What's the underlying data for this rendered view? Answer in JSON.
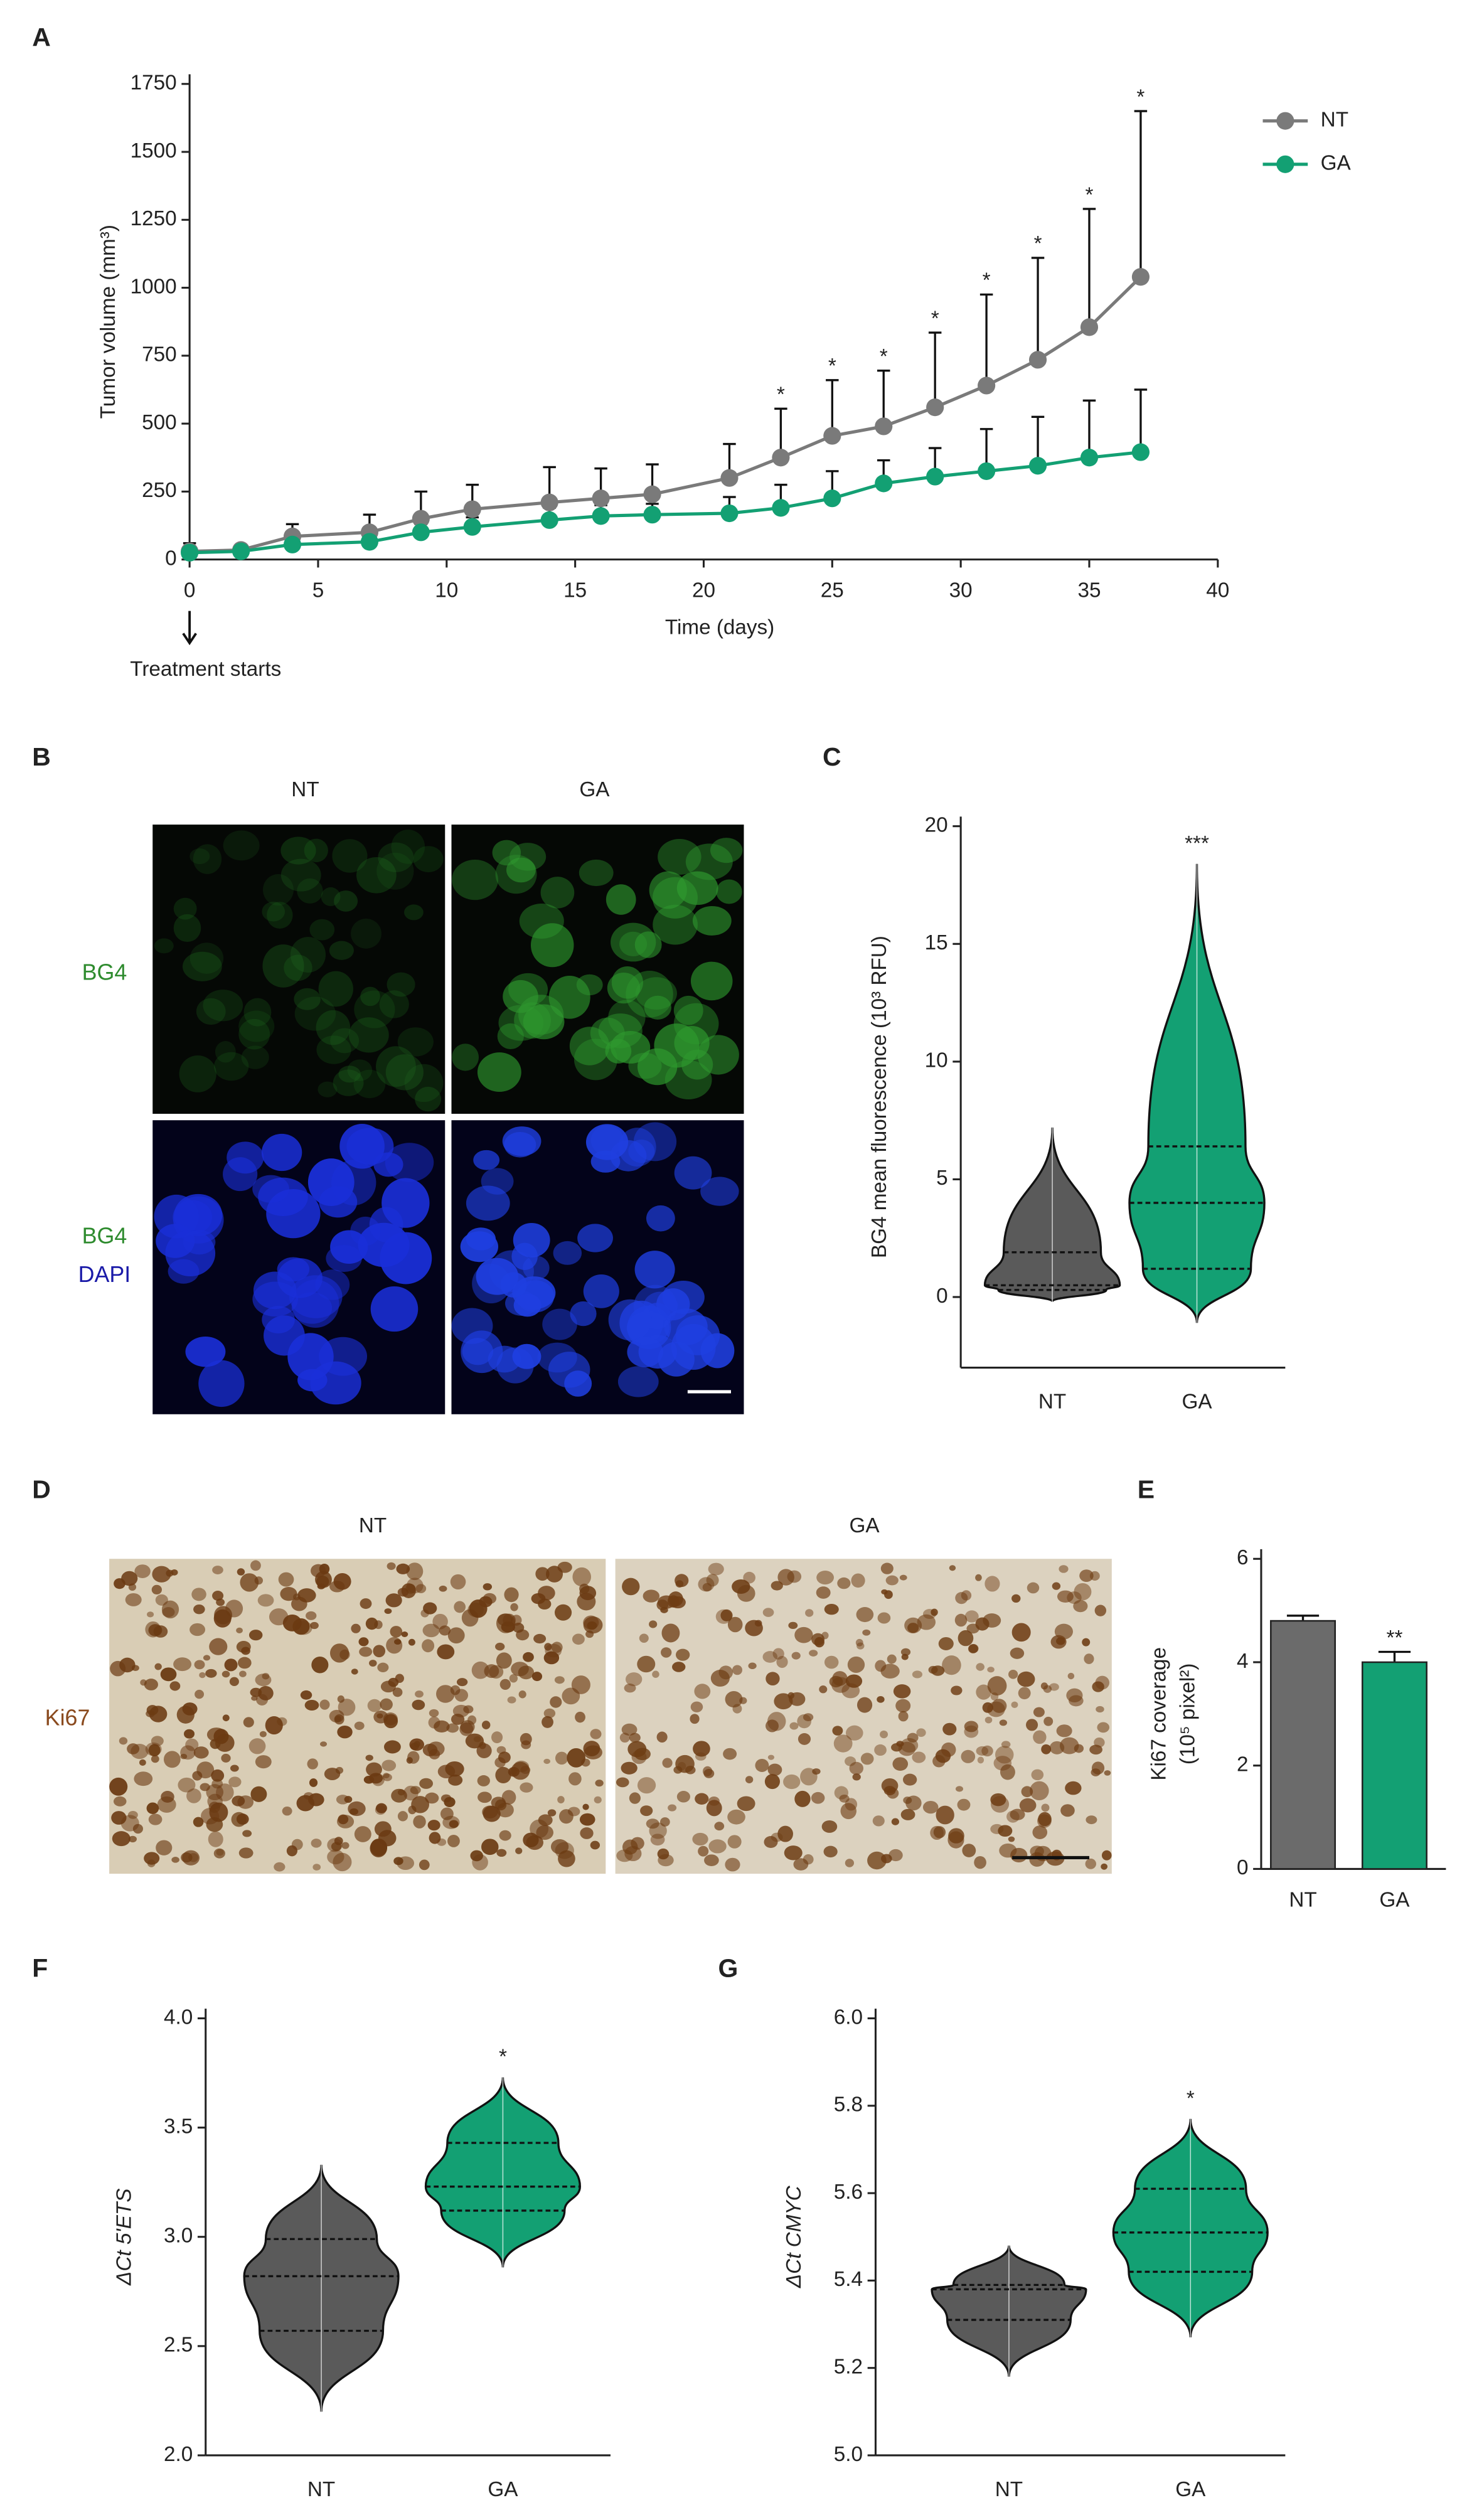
{
  "panel_labels": [
    "A",
    "B",
    "C",
    "D",
    "E",
    "F",
    "G"
  ],
  "micrographs": {
    "columns": [
      "NT",
      "GA"
    ],
    "rows": [
      [
        "BG4"
      ],
      [
        "BG4",
        "DAPI"
      ]
    ]
  },
  "histology": {
    "columns": [
      "NT",
      "GA"
    ],
    "row": "Ki67"
  },
  "chart_data": [
    {
      "type": "line",
      "ylabel": "Tumor volume (mm³)",
      "xlabel": "Time (days)",
      "x": [
        0,
        2,
        4,
        7,
        9,
        11,
        14,
        16,
        18,
        21,
        23,
        25,
        27,
        29,
        31,
        33,
        35,
        37
      ],
      "series": [
        {
          "name": "NT",
          "color": "#7a7a7a",
          "values": [
            30,
            35,
            85,
            100,
            150,
            185,
            210,
            225,
            240,
            300,
            375,
            455,
            490,
            560,
            640,
            735,
            855,
            1040
          ],
          "errors": [
            30,
            10,
            45,
            65,
            100,
            90,
            130,
            110,
            110,
            125,
            180,
            205,
            205,
            275,
            335,
            375,
            435,
            610
          ]
        },
        {
          "name": "GA",
          "color": "#13a073",
          "values": [
            25,
            30,
            55,
            65,
            100,
            120,
            145,
            160,
            165,
            170,
            190,
            225,
            280,
            305,
            325,
            345,
            375,
            395
          ],
          "errors": [
            10,
            5,
            15,
            20,
            30,
            35,
            45,
            40,
            40,
            60,
            85,
            100,
            85,
            105,
            155,
            180,
            210,
            230
          ]
        }
      ],
      "xlim": [
        0,
        40
      ],
      "xticks": [
        0,
        5,
        10,
        15,
        20,
        25,
        30,
        35,
        40
      ],
      "ylim": [
        0,
        1750
      ],
      "yticks": [
        0,
        250,
        500,
        750,
        1000,
        1250,
        1500,
        1750
      ],
      "legend": "upper right",
      "annotations": [
        {
          "x": 23,
          "text": "*"
        },
        {
          "x": 25,
          "text": "*"
        },
        {
          "x": 27,
          "text": "*"
        },
        {
          "x": 29,
          "text": "*"
        },
        {
          "x": 31,
          "text": "*"
        },
        {
          "x": 33,
          "text": "*"
        },
        {
          "x": 35,
          "text": "*"
        },
        {
          "x": 37,
          "text": "*"
        }
      ],
      "marker_text": "Treatment starts"
    },
    {
      "type": "violin",
      "ylabel": "BG4 mean fluorescence (10³ RFU)",
      "categories": [
        "NT",
        "GA"
      ],
      "colors": [
        "#5a5a5a",
        "#13a073"
      ],
      "min": [
        -0.2,
        -1.1
      ],
      "q1": [
        0.3,
        1.2
      ],
      "median": [
        0.5,
        4.0
      ],
      "q3": [
        1.9,
        6.4
      ],
      "max": [
        7.2,
        18.4
      ],
      "ylim": [
        -3,
        20
      ],
      "yticks": [
        0,
        5,
        10,
        15,
        20
      ],
      "annotations": [
        {
          "category": "GA",
          "text": "***"
        }
      ]
    },
    {
      "type": "bar",
      "ylabel": [
        "Ki67 coverage",
        "(10⁵ pixel²)"
      ],
      "categories": [
        "NT",
        "GA"
      ],
      "colors": [
        "#6b6b6b",
        "#13a073"
      ],
      "values": [
        4.8,
        4.0
      ],
      "errors": [
        0.1,
        0.2
      ],
      "ylim": [
        0,
        6
      ],
      "yticks": [
        0,
        2,
        4,
        6
      ],
      "annotations": [
        {
          "category": "GA",
          "text": "**"
        }
      ]
    },
    {
      "type": "violin",
      "ylabel": "ΔCt 5'ETS",
      "categories": [
        "NT",
        "GA"
      ],
      "colors": [
        "#5a5a5a",
        "#13a073"
      ],
      "min": [
        2.2,
        2.86
      ],
      "q1": [
        2.57,
        3.12
      ],
      "median": [
        2.82,
        3.23
      ],
      "q3": [
        2.99,
        3.43
      ],
      "max": [
        3.33,
        3.73
      ],
      "ylim": [
        2.0,
        4.0
      ],
      "yticks": [
        {
          "value": 2,
          "label": "2.0"
        },
        2.5,
        {
          "value": 3,
          "label": "3.0"
        },
        3.5,
        {
          "value": 4,
          "label": "4.0"
        }
      ],
      "annotations": [
        {
          "category": "GA",
          "text": "*"
        }
      ]
    },
    {
      "type": "violin",
      "ylabel": "ΔCt CMYC",
      "categories": [
        "NT",
        "GA"
      ],
      "colors": [
        "#5a5a5a",
        "#13a073"
      ],
      "min": [
        5.18,
        5.27
      ],
      "q1": [
        5.31,
        5.42
      ],
      "median": [
        5.38,
        5.51
      ],
      "q3": [
        5.39,
        5.61
      ],
      "max": [
        5.48,
        5.77
      ],
      "ylim": [
        5.0,
        6.0
      ],
      "yticks": [
        {
          "value": 5,
          "label": "5.0"
        },
        5.2,
        5.4,
        5.6,
        5.8,
        {
          "value": 6,
          "label": "6.0"
        }
      ],
      "annotations": [
        {
          "category": "GA",
          "text": "*"
        }
      ]
    }
  ]
}
